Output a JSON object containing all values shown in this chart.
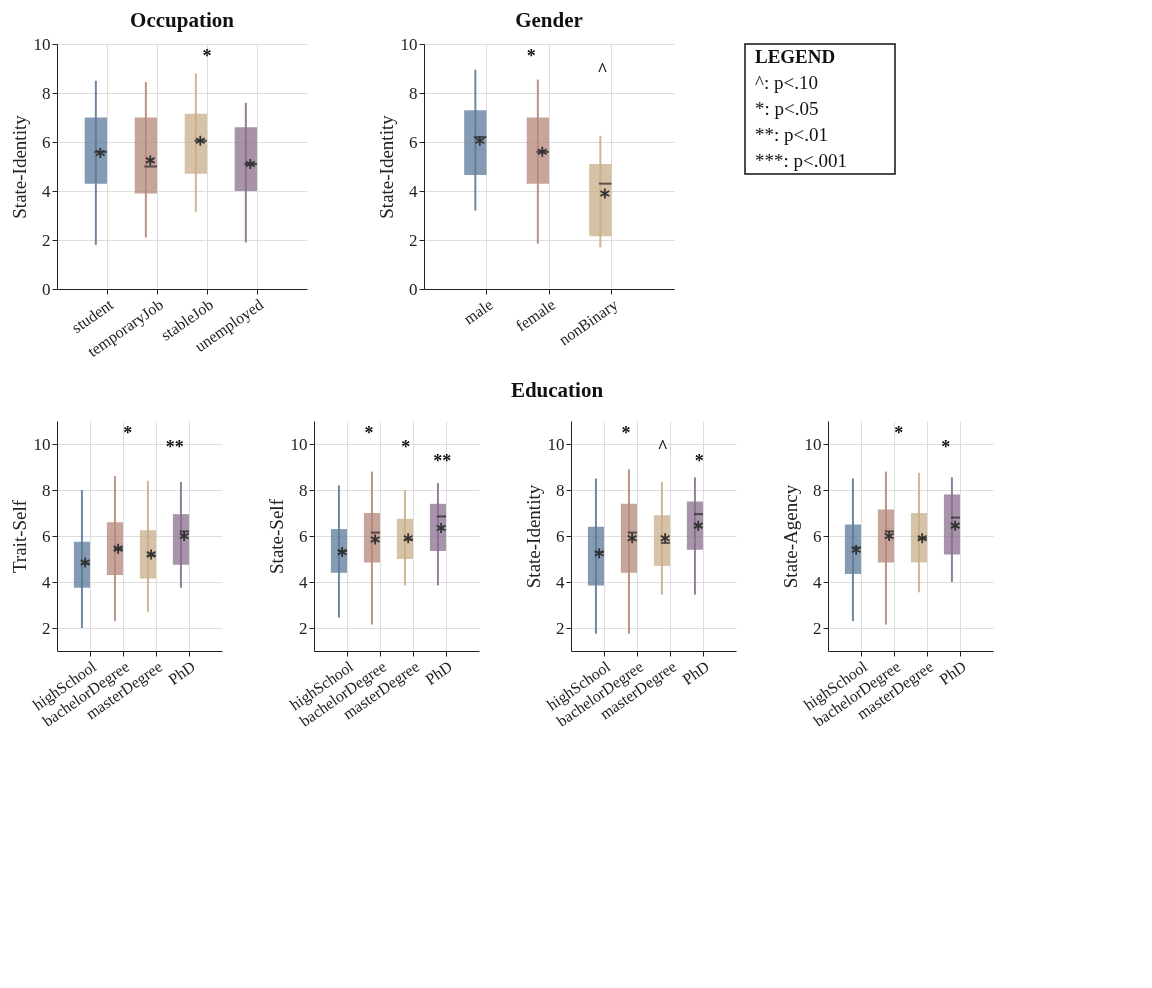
{
  "chart_data": [
    {
      "type": "box",
      "title": "Occupation",
      "ylabel": "State-Identity",
      "categories": [
        "student",
        "temporaryJob",
        "stableJob",
        "unemployed"
      ],
      "colors": [
        "#5b7a99",
        "#b5877a",
        "#c8ae88",
        "#8a6f8e"
      ],
      "ylim": [
        0,
        10
      ],
      "yticks": [
        0,
        2,
        4,
        6,
        8,
        10
      ],
      "grid": true,
      "boxes": [
        {
          "low": 1.8,
          "q1": 4.3,
          "median": 5.6,
          "q3": 7.0,
          "high": 8.5,
          "mean": 5.55
        },
        {
          "low": 2.1,
          "q1": 3.9,
          "median": 5.0,
          "q3": 7.0,
          "high": 8.45,
          "mean": 5.25
        },
        {
          "low": 3.15,
          "q1": 4.7,
          "median": 6.05,
          "q3": 7.15,
          "high": 8.8,
          "mean": 6.05
        },
        {
          "low": 1.9,
          "q1": 4.0,
          "median": 5.1,
          "q3": 6.6,
          "high": 7.6,
          "mean": 5.1
        }
      ],
      "annotations": [
        "*"
      ]
    },
    {
      "type": "box",
      "title": "Gender",
      "ylabel": "State-Identity",
      "categories": [
        "male",
        "female",
        "nonBinary"
      ],
      "colors": [
        "#5b7a99",
        "#b5877a",
        "#c8ae88"
      ],
      "ylim": [
        0,
        10
      ],
      "yticks": [
        0,
        2,
        4,
        6,
        8,
        10
      ],
      "grid": true,
      "boxes": [
        {
          "low": 3.2,
          "q1": 4.65,
          "median": 6.2,
          "q3": 7.3,
          "high": 8.95,
          "mean": 6.05
        },
        {
          "low": 1.85,
          "q1": 4.3,
          "median": 5.6,
          "q3": 7.0,
          "high": 8.55,
          "mean": 5.6
        },
        {
          "low": 1.7,
          "q1": 2.15,
          "median": 4.3,
          "q3": 5.1,
          "high": 6.25,
          "mean": 3.9
        }
      ],
      "annotations": [
        "*",
        "^"
      ]
    },
    {
      "type": "other",
      "title": "LEGEND",
      "annotations": [
        "^: p<.10",
        "*: p<.05",
        "**: p<.01",
        "***: p<.001"
      ]
    },
    {
      "type": "other",
      "title": "Education"
    },
    {
      "type": "box",
      "ylabel": "Trait-Self",
      "categories": [
        "highSchool",
        "bachelorDegree",
        "masterDegree",
        "PhD"
      ],
      "colors": [
        "#5b7a99",
        "#b5877a",
        "#c8ae88",
        "#8a6f8e"
      ],
      "ylim": [
        1,
        11
      ],
      "yticks": [
        2,
        4,
        6,
        8,
        10
      ],
      "grid": true,
      "boxes": [
        {
          "low": 2.0,
          "q1": 3.75,
          "median": 4.8,
          "q3": 5.75,
          "high": 8.0,
          "mean": 4.85
        },
        {
          "low": 2.3,
          "q1": 4.3,
          "median": 5.45,
          "q3": 6.6,
          "high": 8.6,
          "mean": 5.45
        },
        {
          "low": 2.7,
          "q1": 4.15,
          "median": 5.15,
          "q3": 6.25,
          "high": 8.4,
          "mean": 5.2
        },
        {
          "low": 3.75,
          "q1": 4.75,
          "median": 6.2,
          "q3": 6.95,
          "high": 8.35,
          "mean": 6.0
        }
      ],
      "annotations": [
        "*",
        "**"
      ]
    },
    {
      "type": "box",
      "ylabel": "State-Self",
      "categories": [
        "highSchool",
        "bachelorDegree",
        "masterDegree",
        "PhD"
      ],
      "colors": [
        "#5b7a99",
        "#b5877a",
        "#c8ae88",
        "#8a6f8e"
      ],
      "ylim": [
        1,
        11
      ],
      "yticks": [
        2,
        4,
        6,
        8,
        10
      ],
      "grid": true,
      "boxes": [
        {
          "low": 2.45,
          "q1": 4.4,
          "median": 5.35,
          "q3": 6.3,
          "high": 8.2,
          "mean": 5.3
        },
        {
          "low": 2.15,
          "q1": 4.85,
          "median": 6.15,
          "q3": 7.0,
          "high": 8.8,
          "mean": 5.85
        },
        {
          "low": 3.85,
          "q1": 5.0,
          "median": 5.85,
          "q3": 6.75,
          "high": 8.0,
          "mean": 5.9
        },
        {
          "low": 3.85,
          "q1": 5.35,
          "median": 6.85,
          "q3": 7.4,
          "high": 8.3,
          "mean": 6.35
        }
      ],
      "annotations": [
        "*",
        "*",
        "**"
      ]
    },
    {
      "type": "box",
      "ylabel": "State-Identity",
      "categories": [
        "highSchool",
        "bachelorDegree",
        "masterDegree",
        "PhD"
      ],
      "colors": [
        "#5b7a99",
        "#b5877a",
        "#c8ae88",
        "#8a6f8e"
      ],
      "ylim": [
        1,
        11
      ],
      "yticks": [
        2,
        4,
        6,
        8,
        10
      ],
      "grid": true,
      "boxes": [
        {
          "low": 1.75,
          "q1": 3.85,
          "median": 5.3,
          "q3": 6.4,
          "high": 8.5,
          "mean": 5.25
        },
        {
          "low": 1.75,
          "q1": 4.4,
          "median": 6.15,
          "q3": 7.4,
          "high": 8.9,
          "mean": 5.9
        },
        {
          "low": 3.45,
          "q1": 4.7,
          "median": 5.7,
          "q3": 6.9,
          "high": 8.35,
          "mean": 5.9
        },
        {
          "low": 3.45,
          "q1": 5.4,
          "median": 6.95,
          "q3": 7.5,
          "high": 8.55,
          "mean": 6.45
        }
      ],
      "annotations": [
        "*",
        "^",
        "*"
      ]
    },
    {
      "type": "box",
      "ylabel": "State-Agency",
      "categories": [
        "highSchool",
        "bachelorDegree",
        "masterDegree",
        "PhD"
      ],
      "colors": [
        "#5b7a99",
        "#b5877a",
        "#c8ae88",
        "#8a6f8e"
      ],
      "ylim": [
        1,
        11
      ],
      "yticks": [
        2,
        4,
        6,
        8,
        10
      ],
      "grid": true,
      "boxes": [
        {
          "low": 2.3,
          "q1": 4.35,
          "median": 5.5,
          "q3": 6.5,
          "high": 8.5,
          "mean": 5.4
        },
        {
          "low": 2.15,
          "q1": 4.85,
          "median": 6.2,
          "q3": 7.15,
          "high": 8.8,
          "mean": 6.0
        },
        {
          "low": 3.55,
          "q1": 4.85,
          "median": 5.9,
          "q3": 7.0,
          "high": 8.75,
          "mean": 5.9
        },
        {
          "low": 4.0,
          "q1": 5.2,
          "median": 6.8,
          "q3": 7.8,
          "high": 8.55,
          "mean": 6.45
        }
      ],
      "annotations": [
        "*",
        "*"
      ]
    }
  ]
}
